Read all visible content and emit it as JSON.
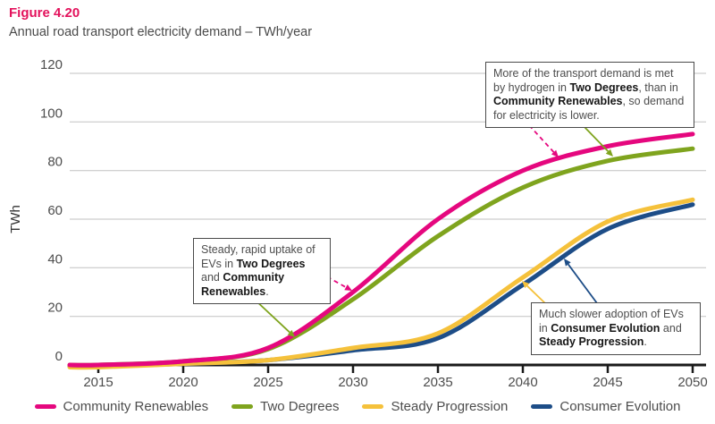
{
  "header": {
    "figure_label": "Figure 4.20",
    "subtitle": "Annual road transport electricity demand – TWh/year"
  },
  "chart_data": {
    "type": "line",
    "title": "Figure 4.20",
    "subtitle": "Annual road transport electricity demand – TWh/year",
    "ylabel": "TWh",
    "ylim": [
      0,
      120
    ],
    "yticks": [
      0,
      20,
      40,
      60,
      80,
      100,
      120
    ],
    "x": [
      2015,
      2020,
      2025,
      2030,
      2035,
      2040,
      2045,
      2050
    ],
    "xticks": [
      2015,
      2020,
      2025,
      2030,
      2035,
      2040,
      2045,
      2050
    ],
    "grid": "horizontal-only",
    "legend_position": "bottom",
    "series": [
      {
        "name": "Community Renewables",
        "color": "#E5077E",
        "values": [
          0,
          1.5,
          7,
          30,
          60,
          80,
          90,
          95
        ]
      },
      {
        "name": "Two Degrees",
        "color": "#7FA41E",
        "values": [
          0,
          1.5,
          6.5,
          27,
          53,
          73,
          84,
          89
        ]
      },
      {
        "name": "Steady Progression",
        "color": "#F5C13B",
        "values": [
          0,
          0.5,
          2,
          7,
          13,
          36,
          59,
          68
        ]
      },
      {
        "name": "Consumer Evolution",
        "color": "#1D4D87",
        "values": [
          0,
          0.5,
          2,
          6,
          11,
          33,
          56,
          66
        ]
      }
    ],
    "annotations": [
      {
        "id": "top",
        "segments": [
          {
            "t": "More of the transport demand is met by hydrogen in ",
            "b": false
          },
          {
            "t": "Two Degrees",
            "b": true
          },
          {
            "t": ", than in ",
            "b": false
          },
          {
            "t": "Community Renewables",
            "b": true
          },
          {
            "t": ", so demand for electricity is lower.",
            "b": false
          }
        ]
      },
      {
        "id": "mid",
        "segments": [
          {
            "t": "Steady, rapid uptake of EVs in ",
            "b": false
          },
          {
            "t": "Two Degrees",
            "b": true
          },
          {
            "t": " and ",
            "b": false
          },
          {
            "t": "Community Renewables",
            "b": true
          },
          {
            "t": ".",
            "b": false
          }
        ]
      },
      {
        "id": "bottom",
        "segments": [
          {
            "t": "Much slower adoption of EVs in ",
            "b": false
          },
          {
            "t": "Consumer Evolution",
            "b": true
          },
          {
            "t": " and ",
            "b": false
          },
          {
            "t": "Steady Progression",
            "b": true
          },
          {
            "t": ".",
            "b": false
          }
        ]
      }
    ]
  }
}
